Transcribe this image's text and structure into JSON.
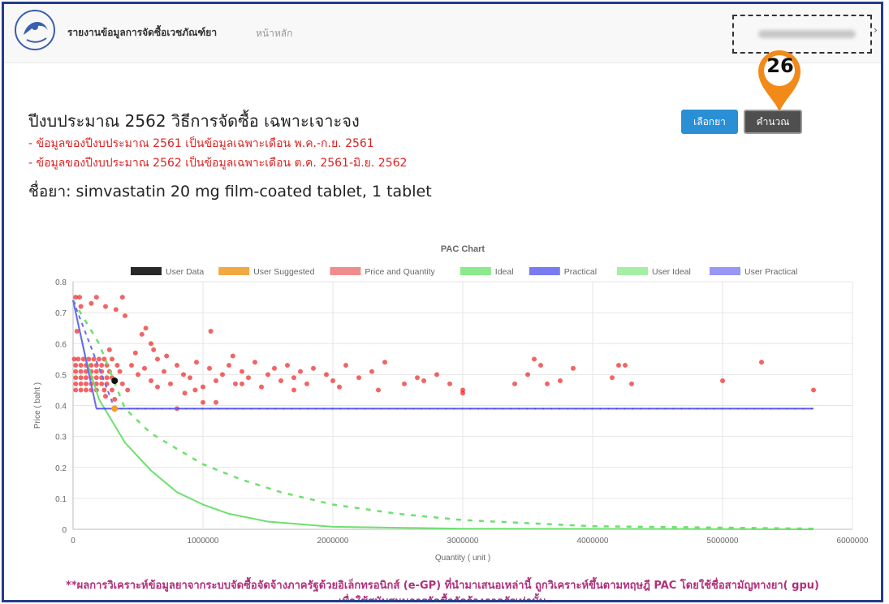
{
  "navbar": {
    "brand": "รายงานข้อมูลการจัดซื้อเวชภัณฑ์ยา",
    "home": "หน้าหลัก",
    "user_caret": "›"
  },
  "annotation": {
    "step_number": "26",
    "color": "#f28a1a"
  },
  "buttons": {
    "select_drug": "เลือกยา",
    "calculate": "คำนวณ"
  },
  "header": {
    "title": "ปีงบประมาณ 2562  วิธีการจัดซื้อ เฉพาะเจาะจง",
    "note1": "- ข้อมูลของปีงบประมาณ 2561 เป็นข้อมูลเฉพาะเดือน พ.ค.-ก.ย. 2561",
    "note2": "- ข้อมูลของปีงบประมาณ 2562 เป็นข้อมูลเฉพาะเดือน ต.ค. 2561-มิ.ย. 2562",
    "drug_name": "ชื่อยา: simvastatin 20 mg film-coated tablet, 1 tablet"
  },
  "footer": {
    "line1": "**ผลการวิเคราะห์ข้อมูลยาจากระบบจัดซื้อจัดจ้างภาครัฐด้วยอิเล็กทรอนิกส์ (e-GP) ที่นำมาเสนอเหล่านี้ ถูกวิเคราะห์ขึ้นตามทฤษฎี PAC โดยใช้ชื่อสามัญทางยา( gpu)",
    "line2": "เพื่อใช้สนับสนุนการจัดซื้อจัดจ้างภาครัฐเท่านั้น"
  },
  "chart_data": {
    "type": "scatter",
    "title": "PAC Chart",
    "xlabel": "Quantity ( unit )",
    "ylabel": "Price ( baht )",
    "xlim": [
      0,
      6000000
    ],
    "ylim": [
      0,
      0.8
    ],
    "x_ticks": [
      "0",
      "1000000",
      "2000000",
      "3000000",
      "4000000",
      "5000000",
      "6000000"
    ],
    "y_ticks": [
      "0",
      "0.1",
      "0.2",
      "0.3",
      "0.4",
      "0.5",
      "0.6",
      "0.7",
      "0.8"
    ],
    "grid": true,
    "legend_position": "top",
    "legend": [
      {
        "name": "User Data",
        "color": "#111111",
        "style": "box"
      },
      {
        "name": "User Suggested",
        "color": "#f0a030",
        "style": "box"
      },
      {
        "name": "Price and Quantity",
        "color": "#f08080",
        "style": "box"
      },
      {
        "name": "Ideal",
        "color": "#7ee87e",
        "style": "box"
      },
      {
        "name": "Practical",
        "color": "#6b6bf0",
        "style": "box"
      },
      {
        "name": "User Ideal",
        "color": "#7ee87e",
        "style": "dashed"
      },
      {
        "name": "User Practical",
        "color": "#6b6bf0",
        "style": "dashed"
      }
    ],
    "user_data_point": [
      320000,
      0.48
    ],
    "user_suggested_point": [
      320000,
      0.39
    ],
    "practical_level": 0.39,
    "practical_x_range": [
      180000,
      5700000
    ],
    "curve_start": [
      0,
      0.74
    ],
    "ideal_curve": [
      [
        0,
        0.74
      ],
      [
        100000,
        0.55
      ],
      [
        200000,
        0.42
      ],
      [
        400000,
        0.28
      ],
      [
        600000,
        0.19
      ],
      [
        800000,
        0.12
      ],
      [
        1000000,
        0.08
      ],
      [
        1200000,
        0.05
      ],
      [
        1500000,
        0.025
      ],
      [
        2000000,
        0.008
      ],
      [
        3000000,
        0.002
      ],
      [
        5700000,
        0
      ]
    ],
    "user_ideal_curve": [
      [
        0,
        0.74
      ],
      [
        200000,
        0.6
      ],
      [
        400000,
        0.39
      ],
      [
        600000,
        0.31
      ],
      [
        800000,
        0.26
      ],
      [
        1000000,
        0.21
      ],
      [
        1300000,
        0.16
      ],
      [
        1600000,
        0.12
      ],
      [
        2000000,
        0.08
      ],
      [
        2500000,
        0.05
      ],
      [
        3000000,
        0.03
      ],
      [
        4000000,
        0.01
      ],
      [
        5700000,
        0.002
      ]
    ],
    "price_quantity": [
      [
        20000,
        0.75
      ],
      [
        50000,
        0.75
      ],
      [
        180000,
        0.75
      ],
      [
        380000,
        0.75
      ],
      [
        140000,
        0.73
      ],
      [
        60000,
        0.72
      ],
      [
        250000,
        0.72
      ],
      [
        330000,
        0.71
      ],
      [
        400000,
        0.69
      ],
      [
        30000,
        0.64
      ],
      [
        560000,
        0.65
      ],
      [
        1060000,
        0.64
      ],
      [
        530000,
        0.63
      ],
      [
        280000,
        0.58
      ],
      [
        600000,
        0.6
      ],
      [
        620000,
        0.58
      ],
      [
        10000,
        0.55
      ],
      [
        40000,
        0.55
      ],
      [
        80000,
        0.55
      ],
      [
        120000,
        0.55
      ],
      [
        160000,
        0.55
      ],
      [
        200000,
        0.55
      ],
      [
        240000,
        0.55
      ],
      [
        300000,
        0.55
      ],
      [
        20000,
        0.53
      ],
      [
        60000,
        0.53
      ],
      [
        100000,
        0.53
      ],
      [
        140000,
        0.53
      ],
      [
        180000,
        0.53
      ],
      [
        220000,
        0.53
      ],
      [
        260000,
        0.53
      ],
      [
        340000,
        0.53
      ],
      [
        20000,
        0.51
      ],
      [
        60000,
        0.51
      ],
      [
        100000,
        0.51
      ],
      [
        140000,
        0.51
      ],
      [
        180000,
        0.51
      ],
      [
        220000,
        0.51
      ],
      [
        280000,
        0.51
      ],
      [
        360000,
        0.51
      ],
      [
        20000,
        0.49
      ],
      [
        60000,
        0.49
      ],
      [
        100000,
        0.49
      ],
      [
        140000,
        0.49
      ],
      [
        180000,
        0.49
      ],
      [
        220000,
        0.49
      ],
      [
        260000,
        0.49
      ],
      [
        300000,
        0.49
      ],
      [
        20000,
        0.47
      ],
      [
        60000,
        0.47
      ],
      [
        100000,
        0.47
      ],
      [
        140000,
        0.47
      ],
      [
        180000,
        0.47
      ],
      [
        220000,
        0.47
      ],
      [
        260000,
        0.47
      ],
      [
        380000,
        0.47
      ],
      [
        20000,
        0.45
      ],
      [
        60000,
        0.45
      ],
      [
        100000,
        0.45
      ],
      [
        140000,
        0.45
      ],
      [
        180000,
        0.45
      ],
      [
        240000,
        0.45
      ],
      [
        300000,
        0.45
      ],
      [
        420000,
        0.45
      ],
      [
        450000,
        0.53
      ],
      [
        500000,
        0.5
      ],
      [
        550000,
        0.52
      ],
      [
        600000,
        0.48
      ],
      [
        650000,
        0.55
      ],
      [
        700000,
        0.51
      ],
      [
        750000,
        0.47
      ],
      [
        800000,
        0.53
      ],
      [
        850000,
        0.5
      ],
      [
        900000,
        0.49
      ],
      [
        950000,
        0.54
      ],
      [
        1000000,
        0.46
      ],
      [
        1050000,
        0.52
      ],
      [
        1100000,
        0.48
      ],
      [
        1150000,
        0.5
      ],
      [
        1200000,
        0.53
      ],
      [
        1250000,
        0.47
      ],
      [
        1300000,
        0.51
      ],
      [
        1350000,
        0.49
      ],
      [
        1400000,
        0.54
      ],
      [
        1450000,
        0.46
      ],
      [
        1500000,
        0.5
      ],
      [
        1550000,
        0.52
      ],
      [
        1600000,
        0.48
      ],
      [
        1650000,
        0.53
      ],
      [
        1700000,
        0.49
      ],
      [
        1750000,
        0.51
      ],
      [
        1800000,
        0.47
      ],
      [
        1850000,
        0.52
      ],
      [
        1950000,
        0.5
      ],
      [
        2000000,
        0.48
      ],
      [
        2100000,
        0.53
      ],
      [
        2200000,
        0.49
      ],
      [
        2300000,
        0.51
      ],
      [
        2400000,
        0.54
      ],
      [
        2550000,
        0.47
      ],
      [
        2650000,
        0.49
      ],
      [
        2800000,
        0.5
      ],
      [
        2900000,
        0.47
      ],
      [
        3000000,
        0.44
      ],
      [
        3000000,
        0.45
      ],
      [
        3400000,
        0.47
      ],
      [
        3500000,
        0.5
      ],
      [
        3550000,
        0.55
      ],
      [
        3600000,
        0.53
      ],
      [
        3650000,
        0.47
      ],
      [
        3750000,
        0.48
      ],
      [
        3850000,
        0.52
      ],
      [
        4200000,
        0.53
      ],
      [
        4250000,
        0.53
      ],
      [
        4300000,
        0.47
      ],
      [
        4150000,
        0.49
      ],
      [
        5000000,
        0.48
      ],
      [
        5300000,
        0.54
      ],
      [
        5700000,
        0.45
      ],
      [
        480000,
        0.57
      ],
      [
        720000,
        0.56
      ],
      [
        1230000,
        0.56
      ],
      [
        860000,
        0.44
      ],
      [
        940000,
        0.45
      ],
      [
        320000,
        0.42
      ],
      [
        250000,
        0.43
      ],
      [
        1100000,
        0.41
      ],
      [
        800000,
        0.39
      ],
      [
        1000000,
        0.41
      ],
      [
        1700000,
        0.45
      ],
      [
        2350000,
        0.45
      ],
      [
        650000,
        0.46
      ],
      [
        1300000,
        0.47
      ],
      [
        2050000,
        0.46
      ],
      [
        2700000,
        0.48
      ]
    ]
  }
}
